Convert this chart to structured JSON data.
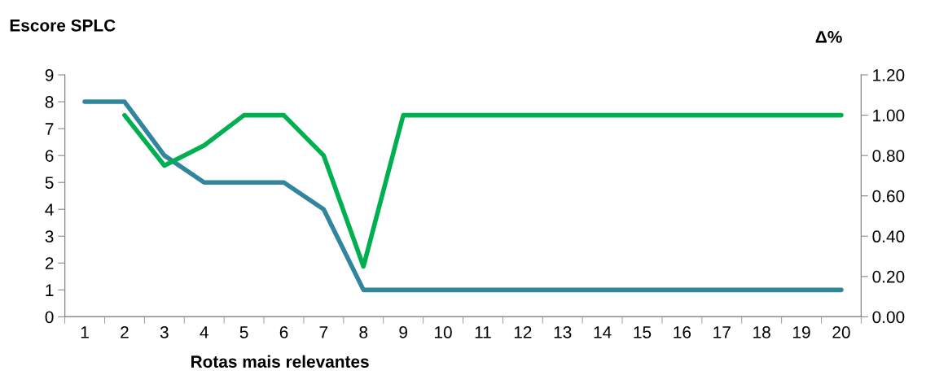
{
  "chart_data": {
    "type": "line",
    "ylabel": "Escore SPLC",
    "y2label": "Δ%",
    "xlabel": "Rotas mais relevantes",
    "categories": [
      "1",
      "2",
      "3",
      "4",
      "5",
      "6",
      "7",
      "8",
      "9",
      "10",
      "11",
      "12",
      "13",
      "14",
      "15",
      "16",
      "17",
      "18",
      "19",
      "20"
    ],
    "series": [
      {
        "color": "#31859c",
        "values": [
          8,
          8,
          6,
          5,
          5,
          5,
          4,
          1,
          1,
          1,
          1,
          1,
          1,
          1,
          1,
          1,
          1,
          1,
          1,
          1
        ]
      },
      {
        "axis": "y2",
        "color": "#00b050",
        "values": [
          null,
          1.0,
          0.75,
          0.85,
          1.0,
          1.0,
          0.8,
          0.25,
          1.0,
          1.0,
          1.0,
          1.0,
          1.0,
          1.0,
          1.0,
          1.0,
          1.0,
          1.0,
          1.0,
          1.0
        ]
      }
    ],
    "ylim": [
      0,
      9
    ],
    "yticks": [
      0,
      1,
      2,
      3,
      4,
      5,
      6,
      7,
      8,
      9
    ],
    "y2lim": [
      0,
      1.2
    ],
    "y2ticks": [
      {
        "value": 0,
        "label": "0.00"
      },
      {
        "value": 0.2,
        "label": "0.20"
      },
      {
        "value": 0.4,
        "label": "0.40"
      },
      {
        "value": 0.6,
        "label": "0.60"
      },
      {
        "value": 0.8,
        "label": "0.80"
      },
      {
        "value": 1.0,
        "label": "1.00"
      },
      {
        "value": 1.2,
        "label": "1.20"
      }
    ],
    "grid": false,
    "legend": false,
    "marker": "none",
    "line_style": "solid"
  }
}
